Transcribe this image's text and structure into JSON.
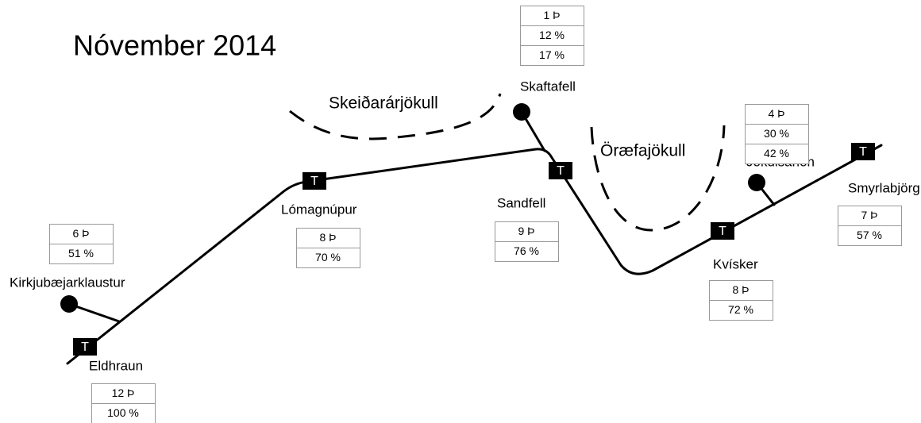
{
  "title": "Nóvember 2014",
  "glaciers": [
    "Skeiðarárjökull",
    "Öræfajökull"
  ],
  "nodes": [
    {
      "label": "Kirkjubæjarklaustur",
      "stats": [
        "6 Þ",
        "51 %"
      ]
    },
    {
      "label": "Eldhraun",
      "symbol": "T",
      "stats": [
        "12 Þ",
        "100 %"
      ]
    },
    {
      "label": "Lómagnúpur",
      "symbol": "T",
      "stats": [
        "8 Þ",
        "70 %"
      ]
    },
    {
      "label": "Skaftafell",
      "stats": [
        "1 Þ",
        "12 %",
        "17 %"
      ]
    },
    {
      "label": "Sandfell",
      "symbol": "T",
      "stats": [
        "9 Þ",
        "76 %"
      ]
    },
    {
      "label": "Jökulsárlón",
      "stats": [
        "4 Þ",
        "30 %",
        "42 %"
      ]
    },
    {
      "label": "Kvísker",
      "symbol": "T",
      "stats": [
        "8 Þ",
        "72 %"
      ]
    },
    {
      "label": "Smyrlabjörg",
      "symbol": "T",
      "stats": [
        "7 Þ",
        "57 %"
      ]
    }
  ]
}
